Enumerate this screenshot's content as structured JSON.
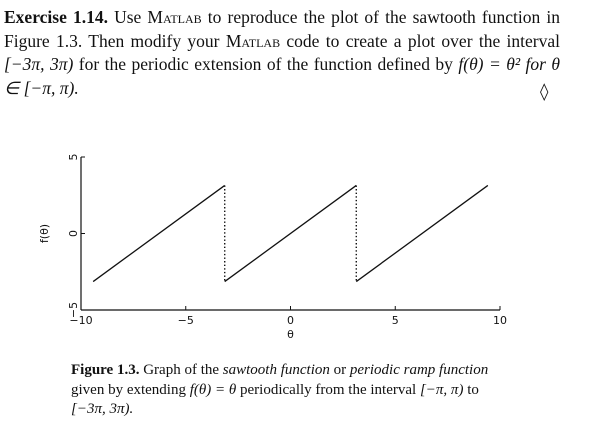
{
  "exercise": {
    "label": "Exercise 1.14.",
    "text_1": " Use ",
    "matlab_1": "Matlab",
    "text_2": " to reproduce the plot of the sawtooth function in Figure 1.3.  Then modify your ",
    "matlab_2": "Matlab",
    "text_3": " code to create a plot over the interval ",
    "interval": "[−3π, 3π)",
    "text_4": " for the periodic extension of the function defined by ",
    "definition": "f(θ) = θ² for θ ∈ [−π, π).",
    "end_mark": "◊"
  },
  "chart_data": {
    "type": "line",
    "title": "",
    "xlabel": "θ",
    "ylabel": "f(θ)",
    "xlim": [
      -10,
      10
    ],
    "ylim": [
      -5,
      5
    ],
    "xticks": [
      -10,
      -5,
      0,
      5,
      10
    ],
    "xtick_labels": [
      "−10",
      "−5",
      "0",
      "5",
      "10"
    ],
    "yticks": [
      -5,
      0,
      5
    ],
    "ytick_labels": [
      "−5",
      "0",
      "5"
    ],
    "grid": false,
    "series": [
      {
        "style": "solid",
        "x": [
          -9.42,
          -3.14
        ],
        "y": [
          -3.14,
          3.14
        ]
      },
      {
        "style": "solid",
        "x": [
          -3.14,
          3.14
        ],
        "y": [
          -3.14,
          3.14
        ]
      },
      {
        "style": "solid",
        "x": [
          3.14,
          9.42
        ],
        "y": [
          -3.14,
          3.14
        ]
      },
      {
        "style": "dotted",
        "x": [
          -3.14,
          -3.14
        ],
        "y": [
          3.14,
          -3.14
        ]
      },
      {
        "style": "dotted",
        "x": [
          3.14,
          3.14
        ],
        "y": [
          3.14,
          -3.14
        ]
      }
    ]
  },
  "caption": {
    "label": "Figure 1.3.",
    "text_1": " Graph of the ",
    "term_1": "sawtooth function",
    "text_2": " or ",
    "term_2": "periodic ramp function",
    "text_3": " given by extending ",
    "formula": "f(θ) = θ",
    "text_4": " periodically from the interval ",
    "from_interval": "[−π, π)",
    "text_5": " to ",
    "to_interval": "[−3π, 3π)."
  }
}
